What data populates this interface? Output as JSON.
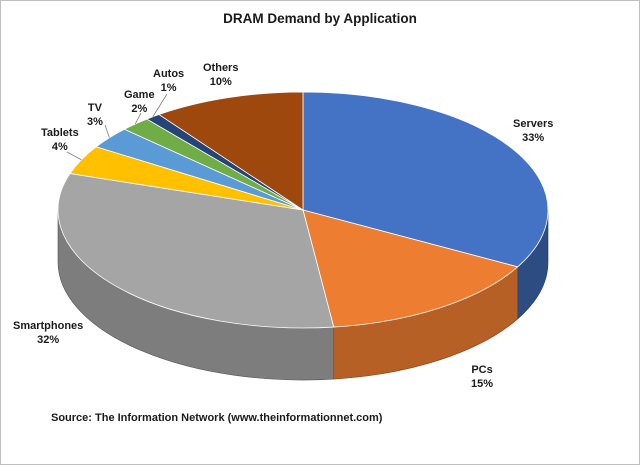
{
  "chart_data": {
    "type": "pie",
    "title": "DRAM Demand by Application",
    "source": "Source: The Information Network (www.theinformationnet.com)",
    "slices": [
      {
        "name": "Servers",
        "value": 33,
        "label": "33%",
        "color": "#4472c4"
      },
      {
        "name": "PCs",
        "value": 15,
        "label": "15%",
        "color": "#ed7d31"
      },
      {
        "name": "Smartphones",
        "value": 32,
        "label": "32%",
        "color": "#a5a5a5"
      },
      {
        "name": "Tablets",
        "value": 4,
        "label": "4%",
        "color": "#ffc000"
      },
      {
        "name": "TV",
        "value": 3,
        "label": "3%",
        "color": "#5b9bd5"
      },
      {
        "name": "Game",
        "value": 2,
        "label": "2%",
        "color": "#70ad47"
      },
      {
        "name": "Autos",
        "value": 1,
        "label": "1%",
        "color": "#264478"
      },
      {
        "name": "Others",
        "value": 10,
        "label": "10%",
        "color": "#9e480e"
      }
    ],
    "legend": "none",
    "style": "3d-pie"
  }
}
